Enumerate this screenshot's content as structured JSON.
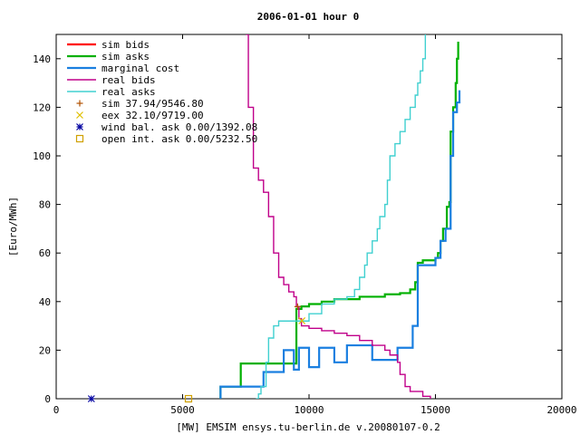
{
  "chart_data": {
    "type": "line",
    "title": "2006-01-01 hour 0",
    "xlabel": "[MW] EMSIM ensys.tu-berlin.de v.20080107-0.2",
    "ylabel": "[Euro/MWh]",
    "xlim": [
      0,
      20000
    ],
    "ylim": [
      0,
      150
    ],
    "xticks": [
      0,
      5000,
      10000,
      15000,
      20000
    ],
    "yticks": [
      0,
      20,
      40,
      60,
      80,
      100,
      120,
      140
    ],
    "grid": false,
    "legend_position": "top-left",
    "series": [
      {
        "name": "sim bids",
        "color": "#ff0000",
        "style": "step",
        "points": []
      },
      {
        "name": "sim asks",
        "color": "#00b000",
        "style": "step",
        "points": [
          [
            6500,
            0
          ],
          [
            6500,
            5
          ],
          [
            7300,
            5
          ],
          [
            7300,
            14.5
          ],
          [
            9500,
            14.5
          ],
          [
            9500,
            37
          ],
          [
            9700,
            38
          ],
          [
            10000,
            39
          ],
          [
            10500,
            40
          ],
          [
            11000,
            41
          ],
          [
            12000,
            42
          ],
          [
            13000,
            43
          ],
          [
            13600,
            43.5
          ],
          [
            14000,
            45
          ],
          [
            14200,
            48
          ],
          [
            14300,
            56
          ],
          [
            14500,
            57
          ],
          [
            15000,
            58
          ],
          [
            15100,
            60
          ],
          [
            15200,
            65
          ],
          [
            15300,
            70
          ],
          [
            15450,
            79
          ],
          [
            15550,
            81
          ],
          [
            15600,
            110
          ],
          [
            15700,
            120
          ],
          [
            15800,
            130
          ],
          [
            15850,
            140
          ],
          [
            15900,
            147
          ]
        ]
      },
      {
        "name": "marginal cost",
        "color": "#1a7fe0",
        "style": "step",
        "points": [
          [
            6500,
            0
          ],
          [
            6500,
            5
          ],
          [
            7300,
            5
          ],
          [
            8200,
            5
          ],
          [
            8200,
            11
          ],
          [
            9000,
            11
          ],
          [
            9000,
            20
          ],
          [
            9400,
            20
          ],
          [
            9400,
            12
          ],
          [
            9600,
            12
          ],
          [
            9600,
            21
          ],
          [
            10000,
            21
          ],
          [
            10000,
            13
          ],
          [
            10400,
            13
          ],
          [
            10400,
            21
          ],
          [
            11000,
            21
          ],
          [
            11000,
            15
          ],
          [
            11500,
            15
          ],
          [
            11500,
            22
          ],
          [
            12500,
            22
          ],
          [
            12500,
            16
          ],
          [
            13500,
            16
          ],
          [
            13500,
            21
          ],
          [
            14100,
            21
          ],
          [
            14100,
            30
          ],
          [
            14300,
            30
          ],
          [
            14300,
            55
          ],
          [
            15000,
            55
          ],
          [
            15000,
            58
          ],
          [
            15200,
            58
          ],
          [
            15200,
            65
          ],
          [
            15400,
            65
          ],
          [
            15400,
            70
          ],
          [
            15600,
            70
          ],
          [
            15600,
            100
          ],
          [
            15700,
            100
          ],
          [
            15700,
            118
          ],
          [
            15850,
            122
          ],
          [
            15950,
            127
          ]
        ]
      },
      {
        "name": "real bids",
        "color": "#c0008a",
        "style": "step",
        "points": [
          [
            7500,
            150
          ],
          [
            7600,
            120
          ],
          [
            7800,
            95
          ],
          [
            8000,
            90
          ],
          [
            8200,
            85
          ],
          [
            8400,
            75
          ],
          [
            8600,
            60
          ],
          [
            8800,
            50
          ],
          [
            9000,
            47
          ],
          [
            9200,
            44
          ],
          [
            9400,
            42
          ],
          [
            9500,
            38
          ],
          [
            9600,
            33
          ],
          [
            9700,
            30
          ],
          [
            10000,
            29
          ],
          [
            10500,
            28
          ],
          [
            11000,
            27
          ],
          [
            11500,
            26
          ],
          [
            12000,
            24
          ],
          [
            12500,
            22
          ],
          [
            13000,
            20
          ],
          [
            13200,
            18
          ],
          [
            13500,
            15
          ],
          [
            13600,
            10
          ],
          [
            13800,
            5
          ],
          [
            14000,
            3
          ],
          [
            14500,
            1
          ],
          [
            14800,
            0
          ]
        ]
      },
      {
        "name": "real asks",
        "color": "#40d0d0",
        "style": "step",
        "points": [
          [
            7900,
            0
          ],
          [
            8000,
            2
          ],
          [
            8100,
            5
          ],
          [
            8300,
            15
          ],
          [
            8400,
            25
          ],
          [
            8600,
            30
          ],
          [
            8800,
            32
          ],
          [
            9500,
            32
          ],
          [
            10000,
            35
          ],
          [
            10500,
            39
          ],
          [
            11000,
            41
          ],
          [
            11500,
            42
          ],
          [
            11800,
            45
          ],
          [
            12000,
            50
          ],
          [
            12200,
            55
          ],
          [
            12300,
            60
          ],
          [
            12500,
            65
          ],
          [
            12700,
            70
          ],
          [
            12800,
            75
          ],
          [
            13000,
            80
          ],
          [
            13100,
            90
          ],
          [
            13200,
            100
          ],
          [
            13400,
            105
          ],
          [
            13600,
            110
          ],
          [
            13800,
            115
          ],
          [
            14000,
            120
          ],
          [
            14200,
            125
          ],
          [
            14300,
            130
          ],
          [
            14400,
            135
          ],
          [
            14500,
            140
          ],
          [
            14600,
            150
          ]
        ]
      }
    ],
    "markers": [
      {
        "label": "sim 37.94/9546.80",
        "symbol": "+",
        "color": "#b05000",
        "x": 9546.8,
        "y": 37.94
      },
      {
        "label": "eex 32.10/9719.00",
        "symbol": "x",
        "color": "#e0c000",
        "x": 9719,
        "y": 32.1
      },
      {
        "label": "wind bal. ask 0.00/1392.08",
        "symbol": "*",
        "color": "#0000a0",
        "x": 1392.08,
        "y": 0
      },
      {
        "label": "open int. ask 0.00/5232.50",
        "symbol": "square",
        "color": "#d0a000",
        "x": 5232.5,
        "y": 0
      }
    ]
  }
}
